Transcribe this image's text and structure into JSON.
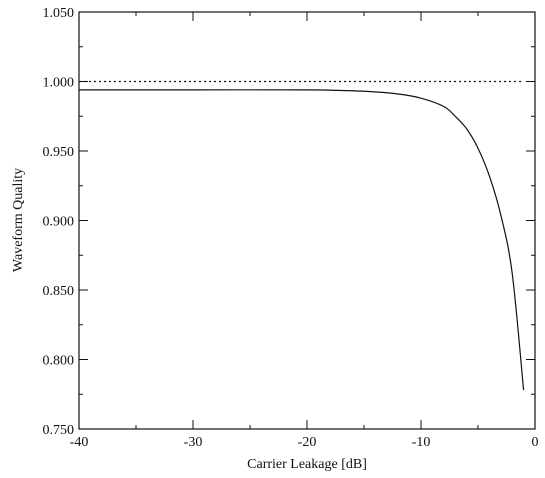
{
  "chart_data": {
    "type": "line",
    "title": "",
    "xlabel": "Carrier Leakage [dB]",
    "ylabel": "Waveform Quality",
    "xlim": [
      -40,
      0
    ],
    "ylim": [
      0.75,
      1.05
    ],
    "x_ticks": [
      "-40",
      "-30",
      "-20",
      "-10",
      "0"
    ],
    "y_ticks": [
      "0.750",
      "0.800",
      "0.850",
      "0.900",
      "0.950",
      "1.000",
      "1.050"
    ],
    "grid": false,
    "legend": "none",
    "series": [
      {
        "style": "dotted",
        "color": "#111111",
        "x": [
          -40,
          -30,
          -20,
          -10,
          -5,
          -1
        ],
        "y": [
          1.0,
          1.0,
          1.0,
          1.0,
          1.0,
          1.0
        ]
      },
      {
        "style": "solid",
        "color": "#111111",
        "x": [
          -40,
          -30,
          -20,
          -15,
          -12,
          -10,
          -8,
          -7,
          -6,
          -5,
          -4,
          -3,
          -2,
          -1
        ],
        "y": [
          0.994,
          0.994,
          0.994,
          0.993,
          0.991,
          0.988,
          0.982,
          0.975,
          0.966,
          0.952,
          0.932,
          0.904,
          0.862,
          0.778
        ]
      }
    ]
  }
}
